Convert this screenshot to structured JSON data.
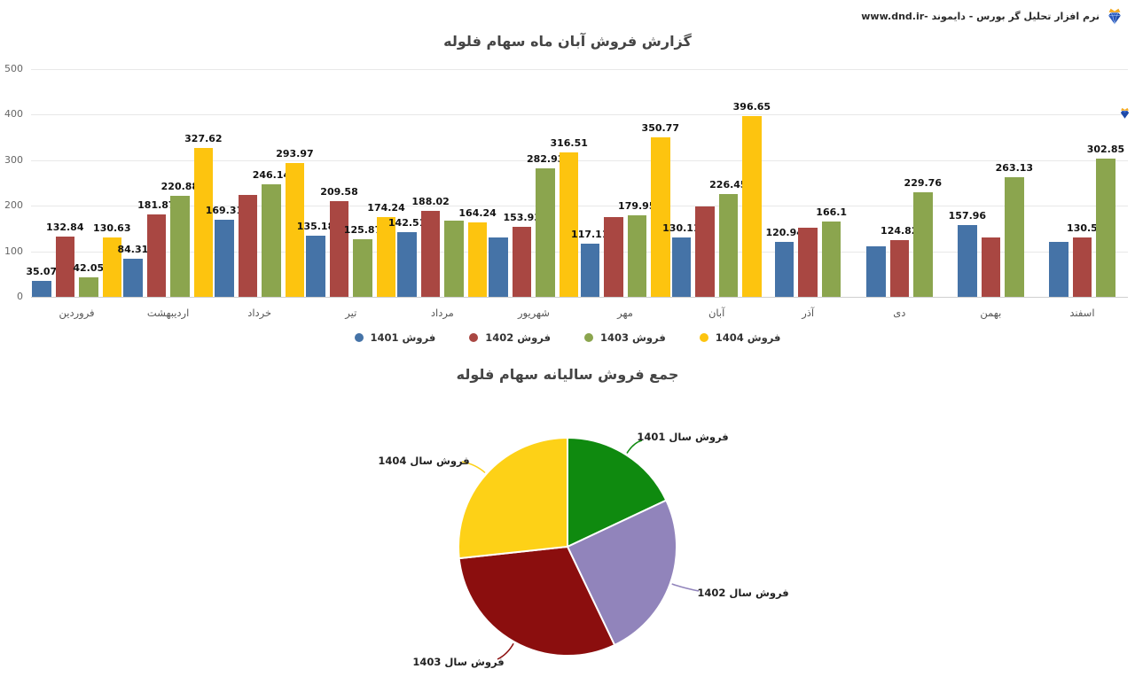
{
  "header": {
    "brand": "نرم افزار تحلیل گر بورس - دایموند -www.dnd.ir",
    "logo_icon": "diamond-crown-icon"
  },
  "chart_data": [
    {
      "type": "bar",
      "title": "گزارش فروش آبان ماه سهام فلوله",
      "xlabel": "",
      "ylabel": "",
      "ylim": [
        0,
        500
      ],
      "yticks": [
        0,
        100,
        200,
        300,
        400,
        500
      ],
      "grid": true,
      "legend_position": "bottom",
      "categories": [
        "فروردین",
        "اردیبهشت",
        "خرداد",
        "تیر",
        "مرداد",
        "شهریور",
        "مهر",
        "آبان",
        "آذر",
        "دی",
        "بهمن",
        "اسفند"
      ],
      "series": [
        {
          "name": "فروش 1401",
          "color": "#4573a7",
          "values": [
            35.07,
            84.31,
            169.31,
            135.18,
            142.51,
            130,
            117.11,
            130.11,
            120.94,
            110,
            157.96,
            120
          ],
          "labels": [
            "35.07",
            "84.31",
            "169.31",
            "135.18",
            "142.51",
            null,
            "117.11",
            "130.11",
            "120.94",
            null,
            "157.96",
            null
          ]
        },
        {
          "name": "فروش 1402",
          "color": "#a94742",
          "values": [
            132.84,
            181.87,
            224,
            209.58,
            188.02,
            153.93,
            176,
            199,
            152,
            124.82,
            131,
            130.5
          ],
          "labels": [
            "132.84",
            "181.87",
            null,
            "209.58",
            "188.02",
            "153.93",
            null,
            null,
            null,
            "124.82",
            null,
            "130.5"
          ]
        },
        {
          "name": "فروش 1403",
          "color": "#8ba54e",
          "values": [
            42.05,
            220.88,
            246.14,
            125.87,
            167,
            282.93,
            179.95,
            226.45,
            166.1,
            229.76,
            263.13,
            302.85
          ],
          "labels": [
            "42.05",
            "220.88",
            "246.14",
            "125.87",
            null,
            "282.93",
            "179.95",
            "226.45",
            "166.1",
            "229.76",
            "263.13",
            "302.85"
          ]
        },
        {
          "name": "فروش 1404",
          "color": "#fdc40f",
          "values": [
            130.63,
            327.62,
            293.97,
            174.24,
            164.24,
            316.51,
            350.77,
            396.65,
            null,
            null,
            null,
            null
          ],
          "labels": [
            "130.63",
            "327.62",
            "293.97",
            "174.24",
            "164.24",
            "316.51",
            "350.77",
            "396.65",
            null,
            null,
            null,
            null
          ]
        }
      ]
    },
    {
      "type": "pie",
      "title": "جمع فروش سالیانه سهام فلوله",
      "labels": [
        "فروش سال 1401",
        "فروش سال 1402",
        "فروش سال 1403",
        "فروش سال 1404"
      ],
      "values_pct": [
        18.0,
        24.9,
        30.4,
        26.7
      ],
      "colors": [
        "#0f8a0f",
        "#9184bb",
        "#8b0e0e",
        "#fdd117"
      ],
      "start_angle": 0,
      "legend_position": "none"
    }
  ]
}
